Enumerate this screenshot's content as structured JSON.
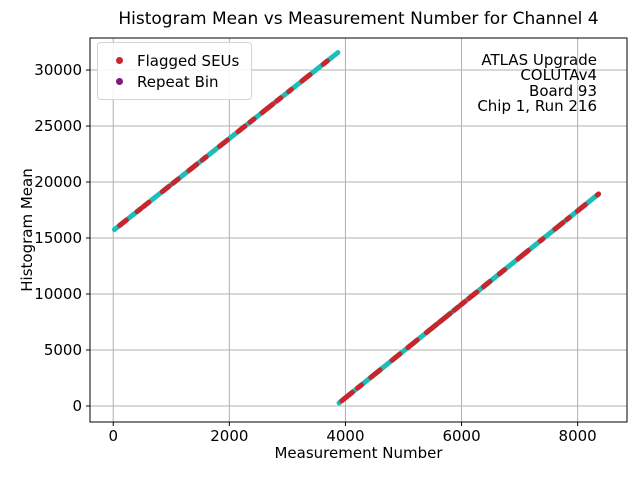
{
  "title": "Histogram Mean vs Measurement Number for Channel 4",
  "legend": {
    "items": [
      {
        "label": "Flagged SEUs",
        "color": "#c9252d"
      },
      {
        "label": "Repeat Bin",
        "color": "#7a1e7e"
      }
    ]
  },
  "annotation": {
    "lines": [
      "ATLAS Upgrade",
      "COLUTAv4",
      "Board 93",
      "Chip 1, Run 216"
    ]
  },
  "chart_data": {
    "type": "scatter",
    "title": "Histogram Mean vs Measurement Number for Channel 4",
    "xlabel": "Measurement Number",
    "ylabel": "Histogram Mean",
    "xlim": [
      -400,
      8850
    ],
    "ylim": [
      -1430,
      32860
    ],
    "x_ticks": [
      0,
      2000,
      4000,
      6000,
      8000
    ],
    "y_ticks": [
      0,
      5000,
      10000,
      15000,
      20000,
      25000,
      30000
    ],
    "grid": true,
    "grid_color": "#b0b0b0",
    "legend_position": "upper left",
    "series": [
      {
        "name": "Histogram mean ramp",
        "color": "#1dbdb8",
        "type": "dense-point-line",
        "segments": [
          {
            "x_start": 20,
            "y_start": 15750,
            "x_end": 3870,
            "y_end": 31560
          },
          {
            "x_start": 3890,
            "y_start": 270,
            "x_end": 8360,
            "y_end": 18930
          }
        ]
      },
      {
        "name": "Flagged SEUs",
        "color": "#c9252d",
        "type": "clusters-along-ramp"
      },
      {
        "name": "Repeat Bin",
        "color": "#7a1e7e",
        "type": "scatter",
        "visible_points": 0
      }
    ]
  }
}
